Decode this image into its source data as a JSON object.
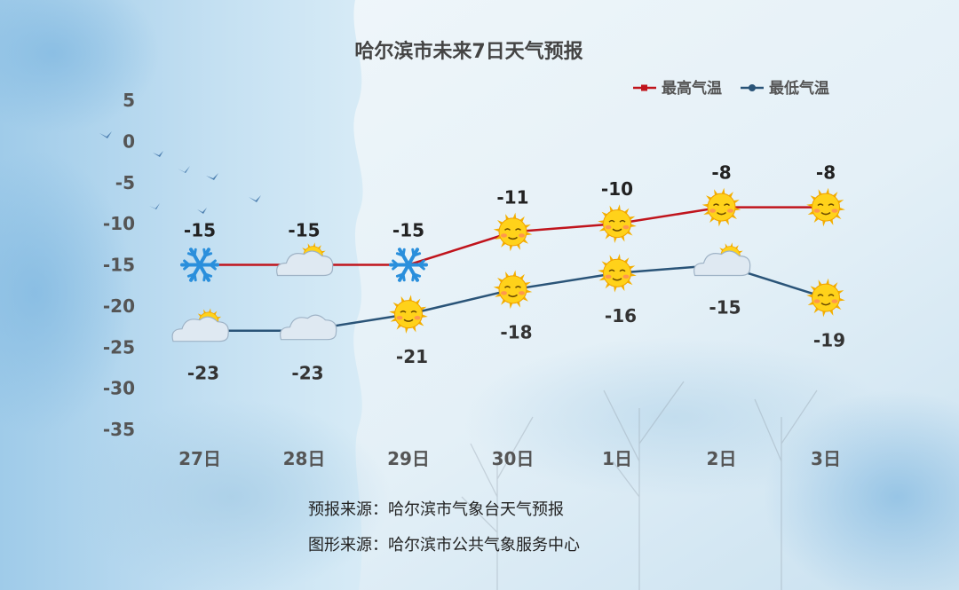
{
  "chart_data": {
    "type": "line",
    "title": "哈尔滨市未来7日天气预报",
    "categories": [
      "27日",
      "28日",
      "29日",
      "30日",
      "1日",
      "2日",
      "3日"
    ],
    "ylim": [
      -35,
      5
    ],
    "yticks": [
      5,
      0,
      -5,
      -10,
      -15,
      -20,
      -25,
      -30,
      -35
    ],
    "grid": false,
    "legend_position": "top-right",
    "series": [
      {
        "name": "最高气温",
        "color": "#c0141c",
        "values": [
          -15,
          -15,
          -15,
          -11,
          -10,
          -8,
          -8
        ],
        "icons": [
          "snowflake-icon",
          "sun-cloud-icon",
          "snowflake-icon",
          "sun-icon",
          "sun-icon",
          "sun-icon",
          "sun-icon"
        ]
      },
      {
        "name": "最低气温",
        "color": "#2a5478",
        "values": [
          -23,
          -23,
          -21,
          -18,
          -16,
          -15,
          -19
        ],
        "icons": [
          "sun-cloud-icon",
          "cloud-icon",
          "sun-icon",
          "sun-icon",
          "sun-icon",
          "sun-cloud-icon",
          "sun-icon"
        ]
      }
    ]
  },
  "footer": {
    "forecast_source": "预报来源：哈尔滨市气象台天气预报",
    "graphic_source": "图形来源：哈尔滨市公共气象服务中心"
  }
}
